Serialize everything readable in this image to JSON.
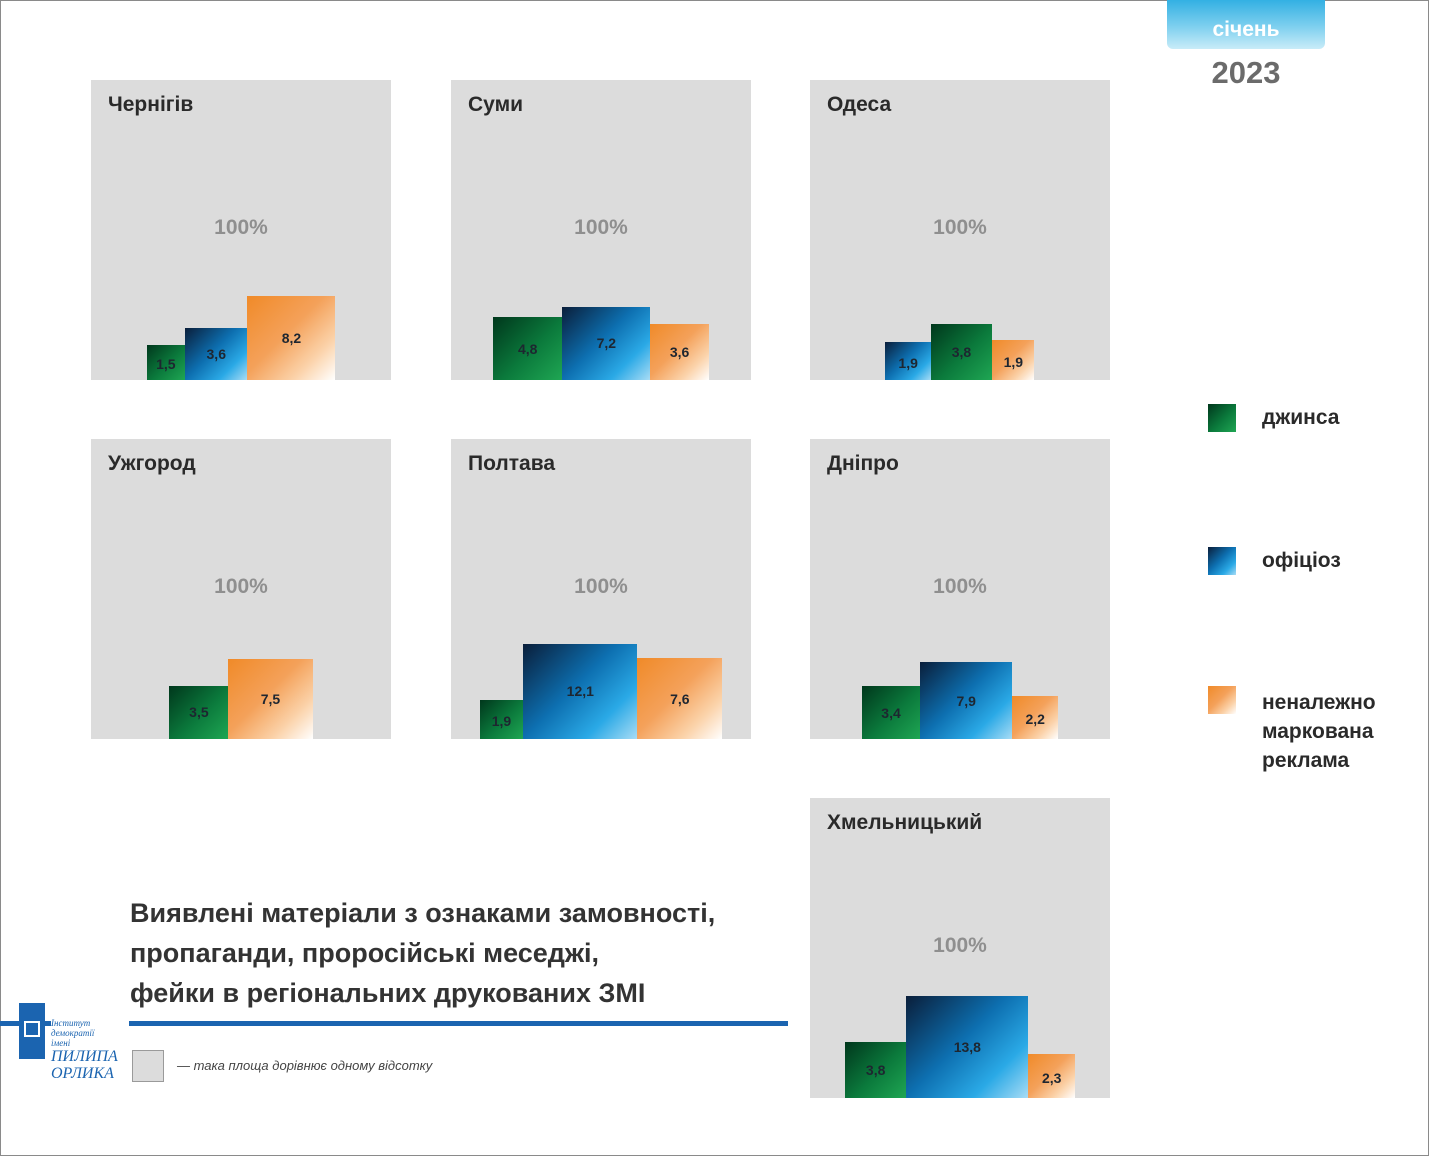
{
  "header": {
    "month": "січень",
    "year": "2023"
  },
  "headline": {
    "lines": [
      "Виявлені матеріали з ознаками замовності,",
      "пропаганди, проросійські меседжі,",
      "фейки в регіональних друкованих ЗМІ"
    ]
  },
  "logo": {
    "line1": "Інститут демократії",
    "line2": "імені",
    "line3": "ПИЛИПА",
    "line4": "ОРЛИКА"
  },
  "note": {
    "text": "— така площа дорівнює одному відсотку"
  },
  "legend": {
    "jeans": "джинса",
    "official": "офіціоз",
    "ads": [
      "неналежно",
      "маркована",
      "реклама"
    ]
  },
  "colors": {
    "jeans": "#0b7a3c",
    "official": "#1a8fd0",
    "ads": "#f4a15a",
    "panel": "#dcdcdc",
    "rule": "#1b64b0"
  },
  "chart_data": {
    "type": "bar",
    "scale_note": "panel area equals 100%",
    "series_names": [
      "джинса",
      "офіціоз",
      "неналежно маркована реклама"
    ],
    "regions": [
      {
        "name": "Чернігів",
        "total_label": "100%",
        "bars": [
          {
            "series": "jeans",
            "value": 1.5,
            "label": "1,5"
          },
          {
            "series": "official",
            "value": 3.6,
            "label": "3,6"
          },
          {
            "series": "ads",
            "value": 8.2,
            "label": "8,2"
          }
        ]
      },
      {
        "name": "Суми",
        "total_label": "100%",
        "bars": [
          {
            "series": "jeans",
            "value": 4.8,
            "label": "4,8"
          },
          {
            "series": "official",
            "value": 7.2,
            "label": "7,2"
          },
          {
            "series": "ads",
            "value": 3.6,
            "label": "3,6"
          }
        ]
      },
      {
        "name": "Одеса",
        "total_label": "100%",
        "bars": [
          {
            "series": "official",
            "value": 1.9,
            "label": "1,9"
          },
          {
            "series": "jeans",
            "value": 3.8,
            "label": "3,8"
          },
          {
            "series": "ads",
            "value": 1.9,
            "label": "1,9"
          }
        ]
      },
      {
        "name": "Ужгород",
        "total_label": "100%",
        "bars": [
          {
            "series": "jeans",
            "value": 3.5,
            "label": "3,5"
          },
          {
            "series": "ads",
            "value": 7.5,
            "label": "7,5"
          }
        ]
      },
      {
        "name": "Полтава",
        "total_label": "100%",
        "bars": [
          {
            "series": "jeans",
            "value": 1.9,
            "label": "1,9"
          },
          {
            "series": "official",
            "value": 12.1,
            "label": "12,1"
          },
          {
            "series": "ads",
            "value": 7.6,
            "label": "7,6"
          }
        ]
      },
      {
        "name": "Дніпро",
        "total_label": "100%",
        "bars": [
          {
            "series": "jeans",
            "value": 3.4,
            "label": "3,4"
          },
          {
            "series": "official",
            "value": 7.9,
            "label": "7,9"
          },
          {
            "series": "ads",
            "value": 2.2,
            "label": "2,2"
          }
        ]
      },
      {
        "name": "Хмельницький",
        "total_label": "100%",
        "bars": [
          {
            "series": "jeans",
            "value": 3.8,
            "label": "3,8"
          },
          {
            "series": "official",
            "value": 13.8,
            "label": "13,8"
          },
          {
            "series": "ads",
            "value": 2.3,
            "label": "2,3"
          }
        ]
      }
    ]
  }
}
